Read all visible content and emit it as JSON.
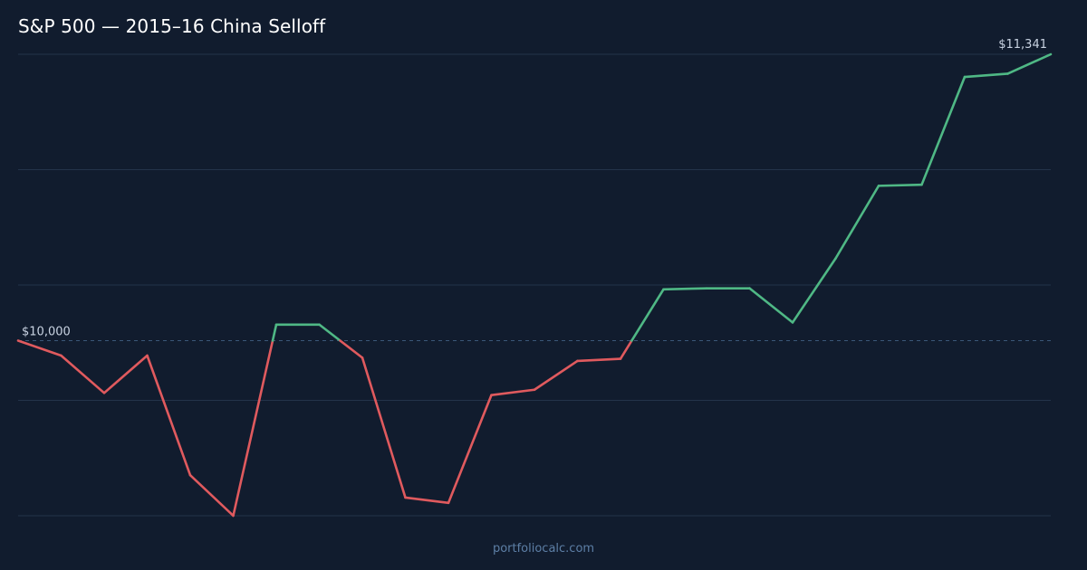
{
  "header": {
    "title": "S&P 500 — 2015–16 China Selloff"
  },
  "footer": {
    "source": "portfoliocalc.com"
  },
  "colors": {
    "background": "#111c2e",
    "gridline": "#24334a",
    "baseline": "#3b5778",
    "loss": "#e05a5e",
    "gain": "#4fb885"
  },
  "chart_data": {
    "type": "line",
    "title": "S&P 500 — 2015–16 China Selloff",
    "xlabel": "",
    "ylabel": "",
    "baseline": 10000,
    "baseline_label": "$10,000",
    "end_label": "$11,341",
    "grid": "horizontal",
    "ylim": [
      9180,
      11341
    ],
    "series": [
      {
        "values": [
          10000,
          9930,
          9755,
          9930,
          9370,
          9180,
          10075,
          10075,
          9920,
          9265,
          9240,
          9745,
          9770,
          9905,
          9915,
          10240,
          10245,
          10245,
          10085,
          10385,
          10725,
          10730,
          11235,
          11250,
          11341
        ]
      }
    ]
  }
}
